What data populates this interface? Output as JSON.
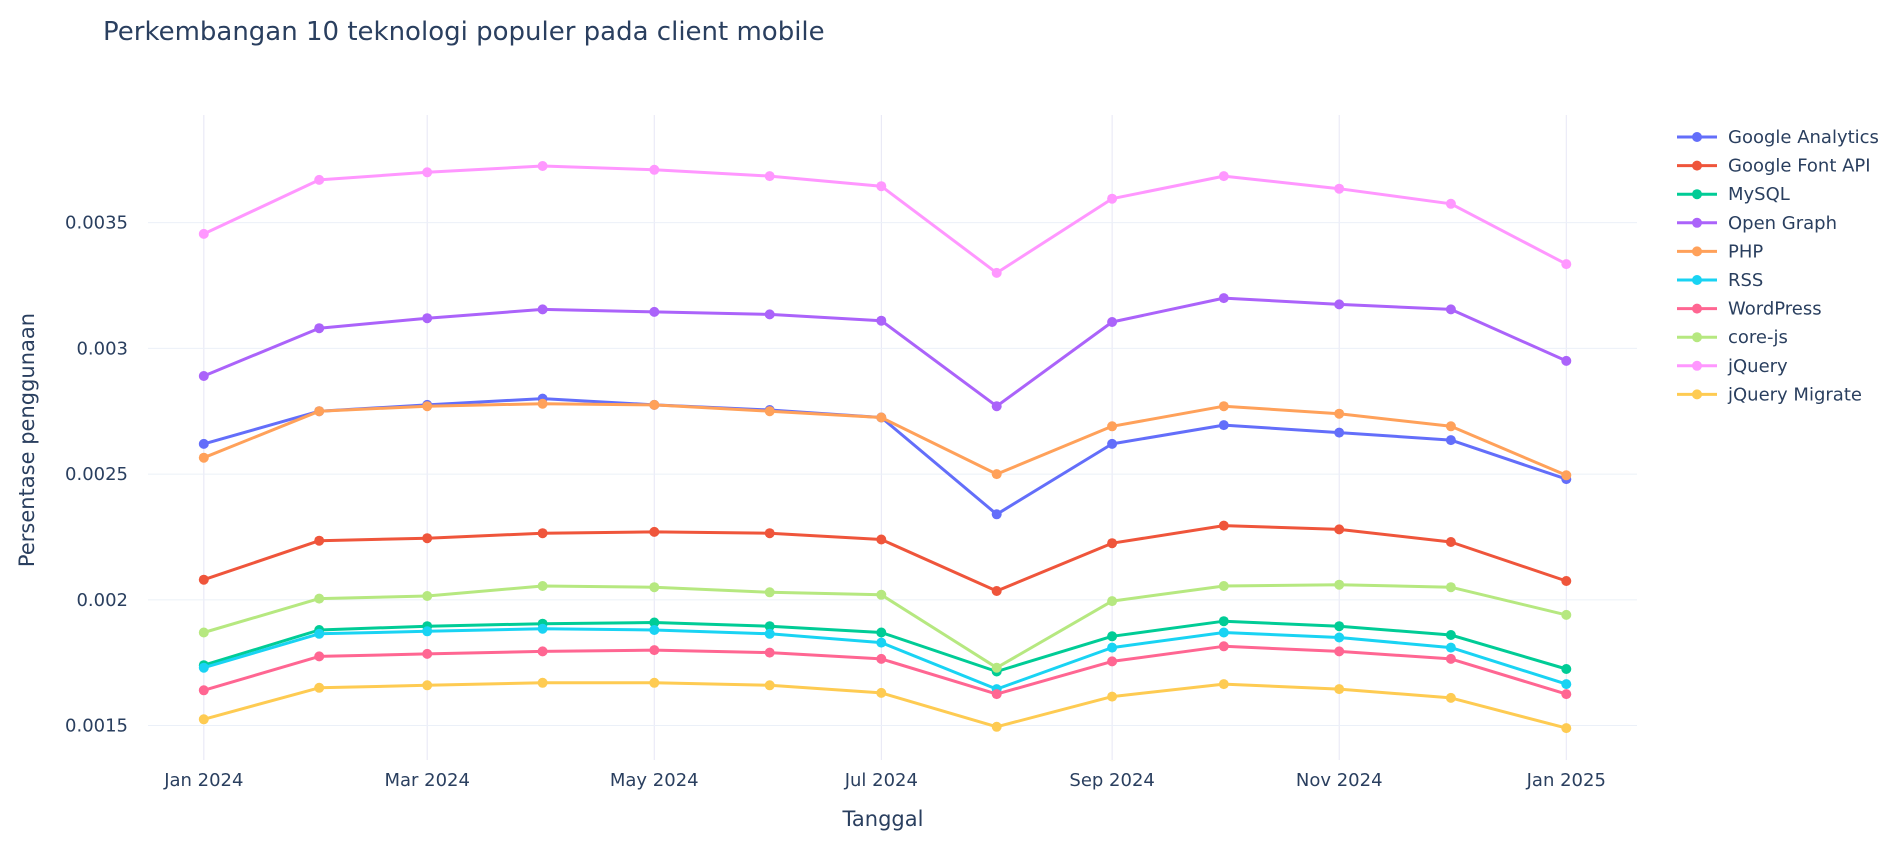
{
  "chart_data": {
    "type": "line",
    "title": "Perkembangan 10 teknologi populer pada client mobile",
    "xlabel": "Tanggal",
    "ylabel": "Persentase penggunaan",
    "x": [
      "2024-01-01",
      "2024-02-01",
      "2024-03-01",
      "2024-04-01",
      "2024-05-01",
      "2024-06-01",
      "2024-07-01",
      "2024-08-01",
      "2024-09-01",
      "2024-10-01",
      "2024-11-01",
      "2024-12-01",
      "2025-01-01"
    ],
    "x_ticks": [
      {
        "date": "2024-01-01",
        "label": "Jan 2024"
      },
      {
        "date": "2024-03-01",
        "label": "Mar 2024"
      },
      {
        "date": "2024-05-01",
        "label": "May 2024"
      },
      {
        "date": "2024-07-01",
        "label": "Jul 2024"
      },
      {
        "date": "2024-09-01",
        "label": "Sep 2024"
      },
      {
        "date": "2024-11-01",
        "label": "Nov 2024"
      },
      {
        "date": "2025-01-01",
        "label": "Jan 2025"
      }
    ],
    "y_ticks": [
      {
        "value": 0.0015,
        "label": "0.0015"
      },
      {
        "value": 0.002,
        "label": "0.002"
      },
      {
        "value": 0.0025,
        "label": "0.0025"
      },
      {
        "value": 0.003,
        "label": "0.003"
      },
      {
        "value": 0.0035,
        "label": "0.0035"
      }
    ],
    "xlim": [
      "2023-12-17",
      "2025-01-20"
    ],
    "ylim": [
      0.001363,
      0.003928
    ],
    "grid": true,
    "legend_position": "right",
    "series": [
      {
        "name": "Google Analytics",
        "color": "#636efa",
        "values": [
          0.00262,
          0.00275,
          0.002775,
          0.0028,
          0.002775,
          0.002755,
          0.002725,
          0.00234,
          0.00262,
          0.002695,
          0.002665,
          0.002635,
          0.00248
        ]
      },
      {
        "name": "Google Font API",
        "color": "#EF553B",
        "values": [
          0.00208,
          0.002235,
          0.002245,
          0.002265,
          0.00227,
          0.002265,
          0.00224,
          0.002035,
          0.002225,
          0.002295,
          0.00228,
          0.00223,
          0.002075
        ]
      },
      {
        "name": "MySQL",
        "color": "#00cc96",
        "values": [
          0.00174,
          0.00188,
          0.001895,
          0.001905,
          0.00191,
          0.001895,
          0.00187,
          0.001715,
          0.001855,
          0.001915,
          0.001895,
          0.00186,
          0.001725
        ]
      },
      {
        "name": "Open Graph",
        "color": "#ab63fa",
        "values": [
          0.00289,
          0.00308,
          0.00312,
          0.003155,
          0.003145,
          0.003135,
          0.00311,
          0.00277,
          0.003105,
          0.0032,
          0.003175,
          0.003155,
          0.00295
        ]
      },
      {
        "name": "PHP",
        "color": "#FFA15A",
        "values": [
          0.002565,
          0.00275,
          0.00277,
          0.00278,
          0.002775,
          0.00275,
          0.002725,
          0.0025,
          0.00269,
          0.00277,
          0.00274,
          0.00269,
          0.002495
        ]
      },
      {
        "name": "RSS",
        "color": "#19d3f3",
        "values": [
          0.00173,
          0.001865,
          0.001875,
          0.001885,
          0.00188,
          0.001865,
          0.00183,
          0.001645,
          0.00181,
          0.00187,
          0.00185,
          0.00181,
          0.001665
        ]
      },
      {
        "name": "WordPress",
        "color": "#FF6692",
        "values": [
          0.00164,
          0.001775,
          0.001785,
          0.001795,
          0.0018,
          0.00179,
          0.001765,
          0.001625,
          0.001755,
          0.001815,
          0.001795,
          0.001765,
          0.001625
        ]
      },
      {
        "name": "core-js",
        "color": "#B6E880",
        "values": [
          0.00187,
          0.002005,
          0.002015,
          0.002055,
          0.00205,
          0.00203,
          0.00202,
          0.00173,
          0.001995,
          0.002055,
          0.00206,
          0.00205,
          0.00194
        ]
      },
      {
        "name": "jQuery",
        "color": "#FF97FF",
        "values": [
          0.003455,
          0.00367,
          0.0037,
          0.003725,
          0.00371,
          0.003685,
          0.003645,
          0.0033,
          0.003595,
          0.003685,
          0.003635,
          0.003575,
          0.003335
        ]
      },
      {
        "name": "jQuery Migrate",
        "color": "#FECB52",
        "values": [
          0.001525,
          0.00165,
          0.00166,
          0.00167,
          0.00167,
          0.00166,
          0.00163,
          0.001495,
          0.001615,
          0.001665,
          0.001645,
          0.00161,
          0.00149
        ]
      }
    ]
  }
}
